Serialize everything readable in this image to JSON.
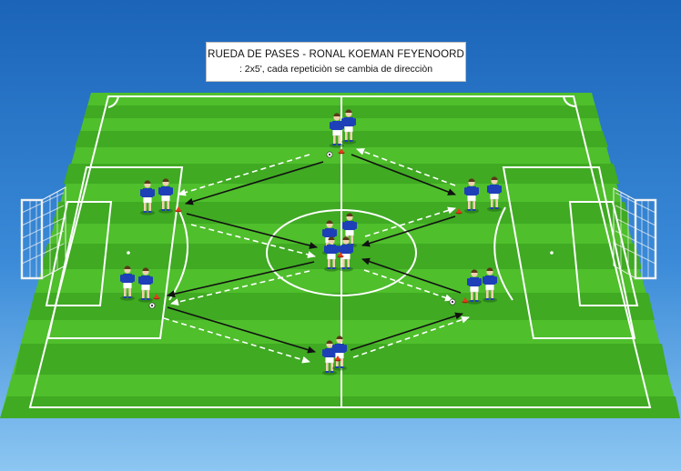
{
  "title": "RUEDA DE PASES - RONAL KOEMAN FEYENOORD",
  "subtitle": ": 2x5', cada repeticiòn se cambia de direcciòn",
  "colors": {
    "sky_top": "#1b64b8",
    "sky_bottom": "#7dbcf0",
    "grass_light": "#57c834",
    "grass_dark": "#3fae22",
    "line": "#ffffff",
    "player_shirt": "#1d3fb8",
    "player_shorts": "#ffffff",
    "cone": "#e53b1a",
    "pass_arrow": "#111111",
    "run_arrow": "#ffffff"
  },
  "icons": {
    "player": "player-icon",
    "ball": "soccer-ball-icon",
    "cone": "cone-icon",
    "goal": "goal-net-icon"
  },
  "groups": [
    {
      "name": "top-center",
      "players": 2,
      "cone": true,
      "ball": true
    },
    {
      "name": "left-upper",
      "players": 2,
      "cone": true,
      "ball": false
    },
    {
      "name": "right-upper",
      "players": 2,
      "cone": true,
      "ball": false
    },
    {
      "name": "center",
      "players": 4,
      "cone": true,
      "ball": false
    },
    {
      "name": "left-lower",
      "players": 2,
      "cone": true,
      "ball": true
    },
    {
      "name": "right-lower",
      "players": 2,
      "cone": true,
      "ball": true
    },
    {
      "name": "bottom-center",
      "players": 2,
      "cone": true,
      "ball": false
    }
  ]
}
